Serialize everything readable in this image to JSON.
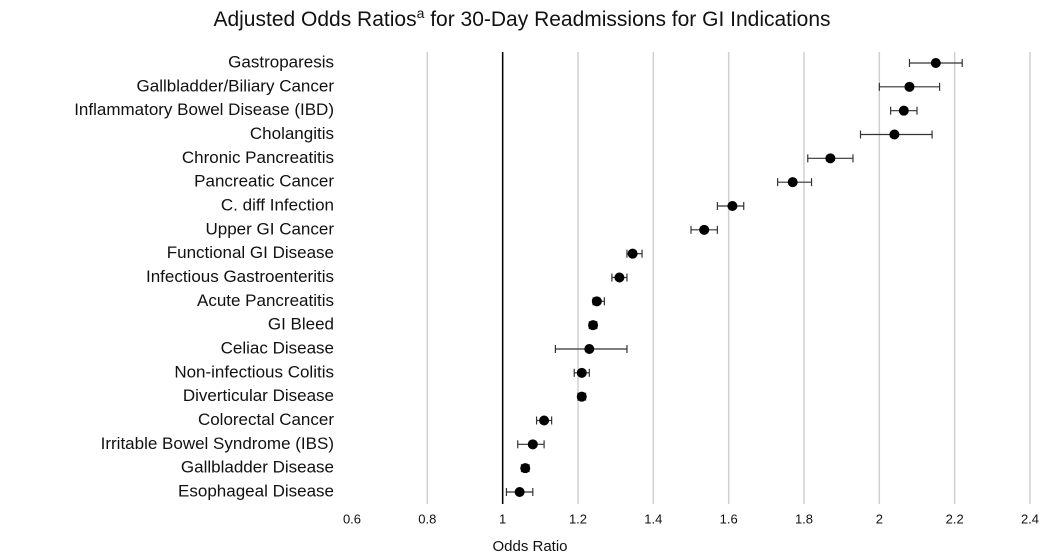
{
  "chart_data": {
    "type": "forest",
    "title": "Adjusted Odds Ratios",
    "title_superscript": "a",
    "title_rest": " for 30-Day Readmissions for GI Indications",
    "x_label": "Odds Ratio",
    "categories": [
      "Gastroparesis",
      "Gallbladder/Biliary Cancer",
      "Inflammatory Bowel Disease (IBD)",
      "Cholangitis",
      "Chronic Pancreatitis",
      "Pancreatic Cancer",
      "C. diff Infection",
      "Upper GI Cancer",
      "Functional GI Disease",
      "Infectious Gastroenteritis",
      "Acute Pancreatitis",
      "GI Bleed",
      "Celiac Disease",
      "Non-infectious Colitis",
      "Diverticular Disease",
      "Colorectal Cancer",
      "Irritable Bowel Syndrome (IBS)",
      "Gallbladder Disease",
      "Esophageal Disease"
    ],
    "values": [
      2.15,
      2.08,
      2.065,
      2.04,
      1.87,
      1.77,
      1.61,
      1.535,
      1.345,
      1.31,
      1.25,
      1.24,
      1.23,
      1.21,
      1.21,
      1.11,
      1.08,
      1.06,
      1.045
    ],
    "lower": [
      2.08,
      2.0,
      2.03,
      1.95,
      1.81,
      1.73,
      1.57,
      1.5,
      1.33,
      1.29,
      1.24,
      1.23,
      1.14,
      1.19,
      1.2,
      1.09,
      1.04,
      1.05,
      1.01
    ],
    "upper": [
      2.22,
      2.16,
      2.1,
      2.14,
      1.93,
      1.82,
      1.64,
      1.57,
      1.37,
      1.33,
      1.27,
      1.25,
      1.33,
      1.23,
      1.22,
      1.13,
      1.11,
      1.07,
      1.08
    ],
    "color": "#000000",
    "xlim": [
      0.6,
      2.4
    ],
    "xticks": [
      0.6,
      0.8,
      1,
      1.2,
      1.4,
      1.6,
      1.8,
      2,
      2.2,
      2.4
    ],
    "reference_line": 1,
    "grid": true
  }
}
